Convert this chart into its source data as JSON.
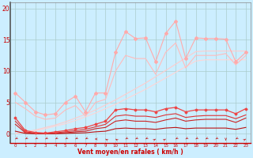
{
  "x": [
    0,
    1,
    2,
    3,
    4,
    5,
    6,
    7,
    8,
    9,
    10,
    11,
    12,
    13,
    14,
    15,
    16,
    17,
    18,
    19,
    20,
    21,
    22,
    23
  ],
  "background_color": "#cceeff",
  "grid_color": "#aacccc",
  "xlabel": "Vent moyen/en rafales ( km/h )",
  "xlabel_color": "#cc0000",
  "tick_color": "#cc0000",
  "ylim": [
    -1.5,
    21
  ],
  "xlim": [
    -0.5,
    23.5
  ],
  "yticks": [
    0,
    5,
    10,
    15,
    20
  ],
  "line_series": [
    {
      "y": [
        6.5,
        5.0,
        3.5,
        3.0,
        3.2,
        5.0,
        6.0,
        3.5,
        6.5,
        6.5,
        13.0,
        16.3,
        15.2,
        15.3,
        11.5,
        16.0,
        18.0,
        12.0,
        15.3,
        15.2,
        15.2,
        15.1,
        11.5,
        13.0
      ],
      "color": "#ffaaaa",
      "linewidth": 0.8,
      "marker": "D",
      "markersize": 2.0,
      "zorder": 5
    },
    {
      "y": [
        5.0,
        4.0,
        2.8,
        2.3,
        2.5,
        3.8,
        4.5,
        2.8,
        5.0,
        5.5,
        10.0,
        12.5,
        12.0,
        12.0,
        9.5,
        13.0,
        14.5,
        10.5,
        12.5,
        12.5,
        12.5,
        12.8,
        11.0,
        12.5
      ],
      "color": "#ffbbbb",
      "linewidth": 0.8,
      "marker": null,
      "markersize": 0,
      "zorder": 4
    },
    {
      "y": [
        0.0,
        0.3,
        0.6,
        1.0,
        1.4,
        1.9,
        2.5,
        3.1,
        3.8,
        4.6,
        5.4,
        6.3,
        7.2,
        8.1,
        9.1,
        10.1,
        11.1,
        12.1,
        13.1,
        13.2,
        13.2,
        13.2,
        13.2,
        13.2
      ],
      "color": "#ffcccc",
      "linewidth": 0.8,
      "marker": null,
      "markersize": 0,
      "zorder": 3
    },
    {
      "y": [
        0.0,
        0.2,
        0.5,
        0.8,
        1.2,
        1.6,
        2.1,
        2.7,
        3.3,
        4.0,
        4.7,
        5.5,
        6.3,
        7.1,
        8.0,
        8.9,
        9.8,
        10.7,
        11.6,
        11.8,
        11.8,
        11.8,
        11.8,
        11.8
      ],
      "color": "#ffd5d5",
      "linewidth": 0.8,
      "marker": null,
      "markersize": 0,
      "zorder": 3
    },
    {
      "y": [
        2.5,
        0.5,
        0.2,
        0.1,
        0.3,
        0.5,
        0.8,
        1.0,
        1.5,
        2.0,
        3.8,
        4.0,
        3.8,
        3.8,
        3.5,
        4.0,
        4.2,
        3.5,
        3.8,
        3.8,
        3.8,
        3.8,
        3.2,
        4.0
      ],
      "color": "#ee4444",
      "linewidth": 0.9,
      "marker": "D",
      "markersize": 1.5,
      "zorder": 6
    },
    {
      "y": [
        2.0,
        0.3,
        0.1,
        0.0,
        0.15,
        0.3,
        0.5,
        0.7,
        1.1,
        1.5,
        2.8,
        3.0,
        2.8,
        2.8,
        2.6,
        3.0,
        3.2,
        2.6,
        2.8,
        2.9,
        2.9,
        2.9,
        2.4,
        3.0
      ],
      "color": "#dd3333",
      "linewidth": 0.8,
      "marker": null,
      "markersize": 0,
      "zorder": 5
    },
    {
      "y": [
        1.5,
        0.15,
        0.05,
        0.0,
        0.05,
        0.15,
        0.3,
        0.4,
        0.8,
        1.0,
        2.0,
        2.2,
        2.0,
        2.0,
        1.8,
        2.2,
        2.5,
        2.0,
        2.2,
        2.3,
        2.3,
        2.3,
        1.8,
        2.5
      ],
      "color": "#cc2222",
      "linewidth": 0.8,
      "marker": null,
      "markersize": 0,
      "zorder": 4
    },
    {
      "y": [
        0.4,
        0.05,
        0.0,
        0.0,
        0.0,
        0.05,
        0.1,
        0.15,
        0.3,
        0.4,
        0.8,
        0.9,
        0.8,
        0.8,
        0.7,
        0.9,
        1.0,
        0.8,
        0.9,
        0.9,
        0.9,
        0.9,
        0.7,
        1.0
      ],
      "color": "#bb1111",
      "linewidth": 0.8,
      "marker": null,
      "markersize": 0,
      "zorder": 4
    }
  ],
  "arrows": {
    "y": -0.85,
    "color": "#cc2222",
    "angles_deg": [
      225,
      225,
      225,
      225,
      225,
      225,
      225,
      225,
      180,
      135,
      135,
      225,
      225,
      225,
      45,
      45,
      225,
      225,
      225,
      225,
      225,
      270,
      225,
      45
    ]
  }
}
